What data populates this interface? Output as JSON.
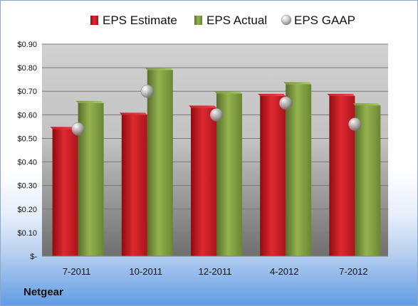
{
  "chart_data": {
    "type": "bar",
    "categories": [
      "7-2011",
      "10-2011",
      "12-2011",
      "4-2012",
      "7-2012"
    ],
    "series": [
      {
        "name": "EPS Estimate",
        "values": [
          0.54,
          0.6,
          0.63,
          0.68,
          0.68
        ],
        "color": "#d21f26"
      },
      {
        "name": "EPS Actual",
        "values": [
          0.65,
          0.79,
          0.69,
          0.73,
          0.64
        ],
        "color": "#7f9f3f"
      },
      {
        "name": "EPS GAAP",
        "values": [
          0.54,
          0.7,
          0.6,
          0.65,
          0.56
        ],
        "color": "#b8b8b8",
        "marker": "sphere"
      }
    ],
    "y_ticks": [
      "$-",
      "$0.10",
      "$0.20",
      "$0.30",
      "$0.40",
      "$0.50",
      "$0.60",
      "$0.70",
      "$0.80",
      "$0.90"
    ],
    "ylim": [
      0,
      0.9
    ],
    "grid": true,
    "legend_position": "top"
  },
  "footer": {
    "company": "Netgear"
  }
}
